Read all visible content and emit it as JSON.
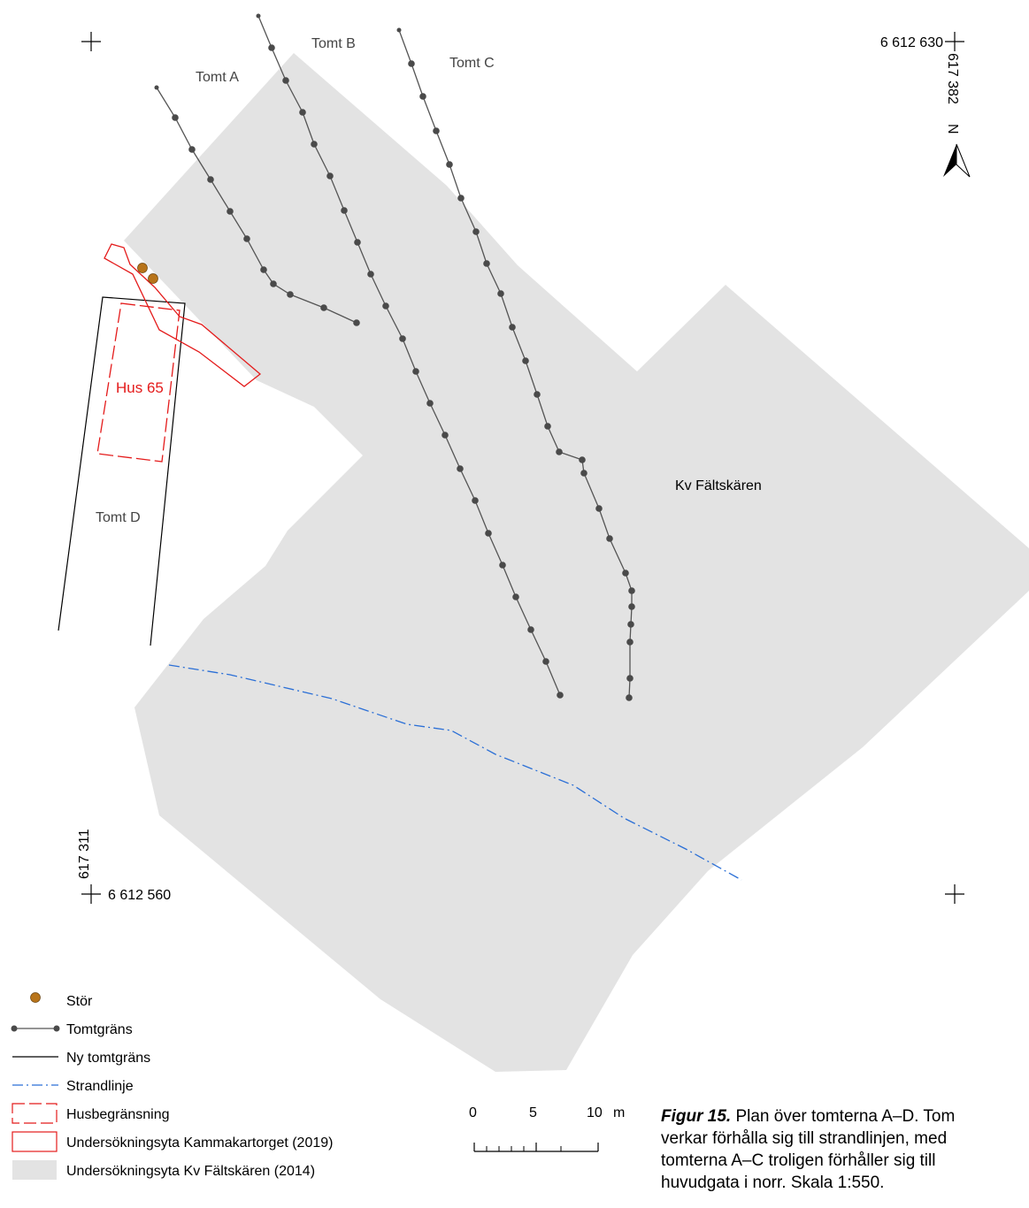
{
  "labels": {
    "tomt_a": "Tomt A",
    "tomt_b": "Tomt B",
    "tomt_c": "Tomt C",
    "tomt_d": "Tomt D",
    "hus65": "Hus 65",
    "kv_faltskaren": "Kv Fältskären"
  },
  "coordinates": {
    "top_right_y": "6 612 630",
    "top_right_x": "617 382",
    "bottom_left_x": "617 311",
    "bottom_left_y": "6 612 560"
  },
  "north_arrow": {
    "letter": "N",
    "icon": "north-arrow-icon"
  },
  "legend": [
    {
      "symbol": "stor-icon",
      "label": "Stör"
    },
    {
      "symbol": "tomtgrans-line-icon",
      "label": "Tomtgräns"
    },
    {
      "symbol": "ny-tomtgrans-line-icon",
      "label": "Ny tomtgräns"
    },
    {
      "symbol": "strandlinje-line-icon",
      "label": "Strandlinje"
    },
    {
      "symbol": "husbegransning-icon",
      "label": "Husbegränsning"
    },
    {
      "symbol": "kammakartorget-area-icon",
      "label": "Undersökningsyta Kammakartorget (2019)"
    },
    {
      "symbol": "faltskaren-area-icon",
      "label": "Undersökningsyta Kv Fältskären (2014)"
    }
  ],
  "scale_bar": {
    "t0": "0",
    "t5": "5",
    "t10": "10",
    "unit": "m"
  },
  "caption": {
    "title": "Figur 15.",
    "line1": " Plan över tomterna A–D. Tom",
    "line2": "verkar förhålla sig till strandlinjen, med",
    "line3": "tomterna A–C troligen förhåller sig till",
    "line4": "huvudgata i norr. Skala 1:550."
  },
  "colors": {
    "area_fill": "#e3e3e3",
    "boundary_line": "#555555",
    "boundary_dot": "#4a4a4a",
    "red": "#e41b1b",
    "shore": "#2b6fd6",
    "stor": "#b8741a"
  }
}
